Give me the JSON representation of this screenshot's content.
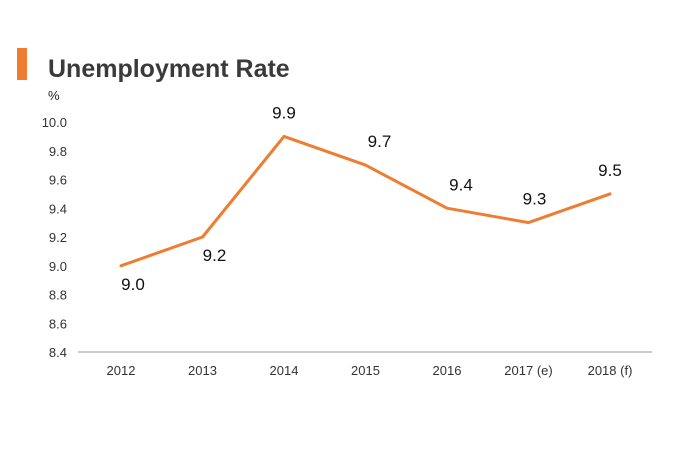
{
  "chart_data": {
    "type": "line",
    "title": "Unemployment Rate",
    "ylabel": "%",
    "xlabel": "",
    "categories": [
      "2012",
      "2013",
      "2014",
      "2015",
      "2016",
      "2017 (e)",
      "2018 (f)"
    ],
    "series": [
      {
        "values": [
          9.0,
          9.2,
          9.9,
          9.7,
          9.4,
          9.3,
          9.5
        ]
      }
    ],
    "data_labels": [
      "9.0",
      "9.2",
      "9.9",
      "9.7",
      "9.4",
      "9.3",
      "9.5"
    ],
    "ylim": [
      8.4,
      10.0
    ],
    "yticks": [
      "8.4",
      "8.6",
      "8.8",
      "9.0",
      "9.2",
      "9.4",
      "9.6",
      "9.8",
      "10.0"
    ],
    "grid": false,
    "colors": {
      "line": "#ee7d31",
      "accent": "#ee7d31",
      "axis": "#999999"
    }
  }
}
